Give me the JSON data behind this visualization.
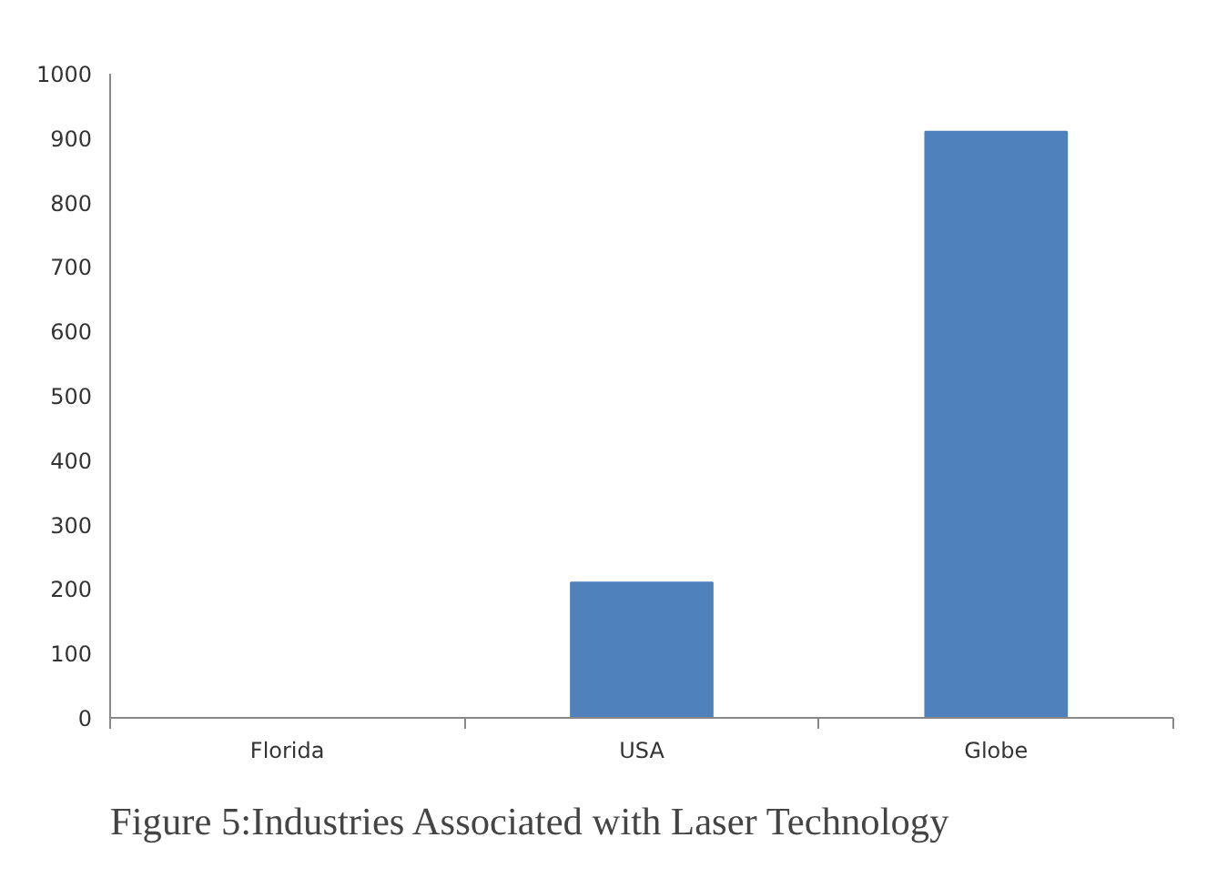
{
  "chart_data": {
    "type": "bar",
    "title": "Figure 5:Industries Associated with Laser Technology",
    "categories": [
      "Florida",
      "USA",
      "Globe"
    ],
    "values": [
      0,
      210,
      910
    ],
    "color": "#4f81bd",
    "ylim": [
      0,
      1000
    ],
    "yticks": [
      0,
      100,
      200,
      300,
      400,
      500,
      600,
      700,
      800,
      900,
      1000
    ],
    "grid": false
  }
}
